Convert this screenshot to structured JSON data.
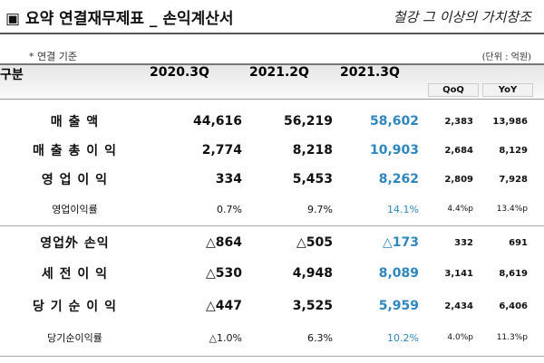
{
  "header": {
    "title": "▣ 요약 연결재무제표 _ 손익계산서",
    "logo": "철강 그 이상의 가치창조"
  },
  "note": "* 연결 기준",
  "unit": "(단위 : 억원)",
  "table": {
    "headers": [
      "구분",
      "2020.3Q",
      "2021.2Q",
      "2021.3Q"
    ],
    "subheaders": [
      "QoQ",
      "YoY"
    ],
    "rows": [
      [
        "매 출 액",
        "44,616",
        "56,219",
        "58,602",
        "2,383",
        "13,986"
      ],
      [
        "매 출 총 이 익",
        "2,774",
        "8,218",
        "10,903",
        "2,684",
        "8,129"
      ],
      [
        "영 업 이 익",
        "334",
        "5,453",
        "8,262",
        "2,809",
        "7,928"
      ],
      [
        "영업이익률",
        "0.7%",
        "9.7%",
        "14.1%",
        "4.4%p",
        "13.4%p"
      ],
      [
        "영업外 손익",
        "△864",
        "△505",
        "△173",
        "332",
        "691"
      ],
      [
        "세 전 이 익",
        "△530",
        "4,948",
        "8,089",
        "3,141",
        "8,619"
      ],
      [
        "당 기 순 이 익",
        "△447",
        "3,525",
        "5,959",
        "2,434",
        "6,406"
      ],
      [
        "당기순이익률",
        "△1.0%",
        "6.3%",
        "10.2%",
        "4.0%p",
        "11.3%p"
      ]
    ]
  }
}
